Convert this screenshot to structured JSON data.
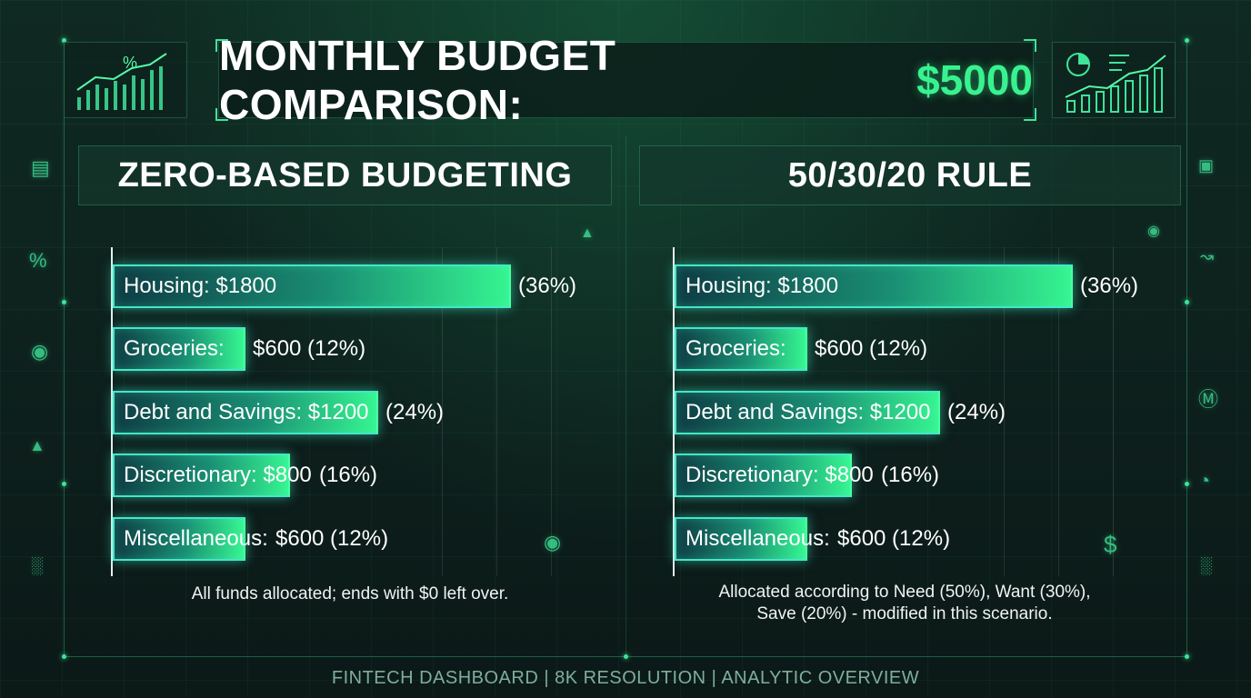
{
  "header": {
    "title_main": "MONTHLY BUDGET COMPARISON:",
    "title_accent": "$5000"
  },
  "colors": {
    "accent": "#38f28f",
    "bar_border": "#41e7c9",
    "background": "#0d1f1c"
  },
  "chart_data": [
    {
      "type": "bar",
      "orientation": "horizontal",
      "title": "ZERO-BASED BUDGETING",
      "categories": [
        "Housing",
        "Groceries",
        "Debt and Savings",
        "Discretionary",
        "Miscellaneous"
      ],
      "values": [
        1800,
        600,
        1200,
        800,
        600
      ],
      "bar_labels": [
        "Housing: $1800",
        "Groceries:",
        "Debt and Savings: $1200",
        "Discretionary: $800",
        "Miscellaneous:"
      ],
      "value_labels": [
        "(36%)",
        "$600 (12%)",
        "(24%)",
        "(16%)",
        "$600  (12%)"
      ],
      "caption": "All funds allocated; ends with $0 left over.",
      "xlim": [
        0,
        2000
      ]
    },
    {
      "type": "bar",
      "orientation": "horizontal",
      "title": "50/30/20 RULE",
      "categories": [
        "Housing",
        "Groceries",
        "Debt and Savings",
        "Discretionary",
        "Miscellaneous"
      ],
      "values": [
        1800,
        600,
        1200,
        800,
        600
      ],
      "bar_labels": [
        "Housing: $1800",
        "Groceries:",
        "Debt and Savings: $1200",
        "Discretionary: $800",
        "Miscellaneous:"
      ],
      "value_labels": [
        "(36%)",
        "$600 (12%)",
        "(24%)",
        "(16%)",
        "$600  (12%)"
      ],
      "caption_lines": [
        "Allocated according to Need (50%), Want (30%),",
        "Save (20%) - modified in this scenario."
      ],
      "xlim": [
        0,
        2000
      ]
    }
  ],
  "footer": "FINTECH DASHBOARD  |  8K RESOLUTION  |  ANALYTIC OVERVIEW",
  "icons": [
    "chart-up-icon",
    "percent-icon",
    "wallet-icon",
    "coin-icon",
    "dollar-icon",
    "pie-icon",
    "growth-icon"
  ]
}
